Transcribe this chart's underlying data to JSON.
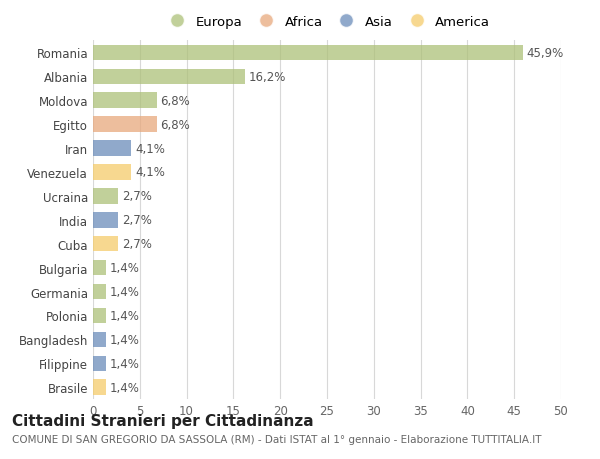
{
  "countries": [
    "Romania",
    "Albania",
    "Moldova",
    "Egitto",
    "Iran",
    "Venezuela",
    "Ucraina",
    "India",
    "Cuba",
    "Bulgaria",
    "Germania",
    "Polonia",
    "Bangladesh",
    "Filippine",
    "Brasile"
  ],
  "values": [
    45.9,
    16.2,
    6.8,
    6.8,
    4.1,
    4.1,
    2.7,
    2.7,
    2.7,
    1.4,
    1.4,
    1.4,
    1.4,
    1.4,
    1.4
  ],
  "labels": [
    "45,9%",
    "16,2%",
    "6,8%",
    "6,8%",
    "4,1%",
    "4,1%",
    "2,7%",
    "2,7%",
    "2,7%",
    "1,4%",
    "1,4%",
    "1,4%",
    "1,4%",
    "1,4%",
    "1,4%"
  ],
  "colors": [
    "#adc178",
    "#adc178",
    "#adc178",
    "#e8a87c",
    "#6b8cba",
    "#f5cc6b",
    "#adc178",
    "#6b8cba",
    "#f5cc6b",
    "#adc178",
    "#adc178",
    "#adc178",
    "#6b8cba",
    "#6b8cba",
    "#f5cc6b"
  ],
  "legend_labels": [
    "Europa",
    "Africa",
    "Asia",
    "America"
  ],
  "legend_colors": [
    "#adc178",
    "#e8a87c",
    "#6b8cba",
    "#f5cc6b"
  ],
  "xlim": [
    0,
    50
  ],
  "xticks": [
    0,
    5,
    10,
    15,
    20,
    25,
    30,
    35,
    40,
    45,
    50
  ],
  "title": "Cittadini Stranieri per Cittadinanza",
  "subtitle": "COMUNE DI SAN GREGORIO DA SASSOLA (RM) - Dati ISTAT al 1° gennaio - Elaborazione TUTTITALIA.IT",
  "bg_color": "#ffffff",
  "bar_alpha": 0.75,
  "grid_color": "#d8d8d8",
  "label_fontsize": 8.5,
  "tick_fontsize": 8.5,
  "title_fontsize": 11,
  "subtitle_fontsize": 7.5
}
